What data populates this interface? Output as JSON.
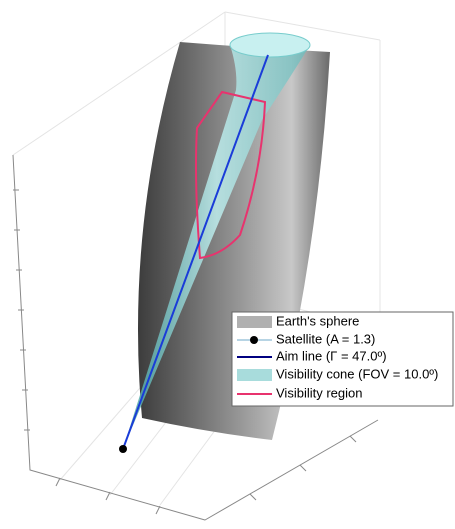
{
  "chart_data": {
    "type": "scene3d",
    "series": [
      {
        "name": "Earth's sphere",
        "color": "#b0b0b0",
        "style": "patch"
      },
      {
        "name": "Satellite  (A = 1.3)",
        "color": "#000000",
        "style": "marker"
      },
      {
        "name": "Aim line  (Γ = 47.0º)",
        "color": "#000080",
        "style": "line"
      },
      {
        "name": "Visibility cone  (FOV = 10.0º)",
        "color": "#a8dcdc",
        "style": "patch"
      },
      {
        "name": "Visibility region",
        "color": "#e8336e",
        "style": "line"
      }
    ]
  }
}
